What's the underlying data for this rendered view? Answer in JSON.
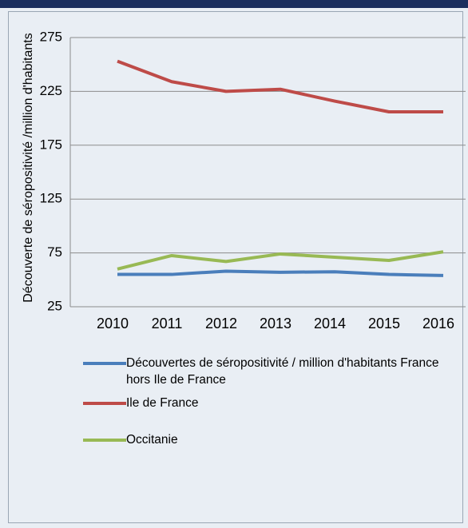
{
  "chart_data": {
    "type": "line",
    "ylabel": "Découverte de séropositivité /million d'habitants",
    "categories": [
      "2010",
      "2011",
      "2012",
      "2013",
      "2014",
      "2015",
      "2016"
    ],
    "series": [
      {
        "name": "Découvertes de séropositivité / million d'habitants France hors Ile de France",
        "color": "#4a7ebb",
        "values": [
          55,
          55,
          58,
          57,
          57.5,
          55,
          54
        ]
      },
      {
        "name": "Ile de France",
        "color": "#be4b48",
        "values": [
          253,
          234,
          225,
          227,
          216,
          206,
          206
        ]
      },
      {
        "name": "Occitanie",
        "color": "#98b954",
        "values": [
          60,
          72.5,
          67,
          74,
          71,
          68,
          76
        ]
      }
    ],
    "ylim": [
      25,
      275
    ],
    "yticks": [
      25,
      75,
      125,
      175,
      225,
      275
    ],
    "grid": true
  }
}
